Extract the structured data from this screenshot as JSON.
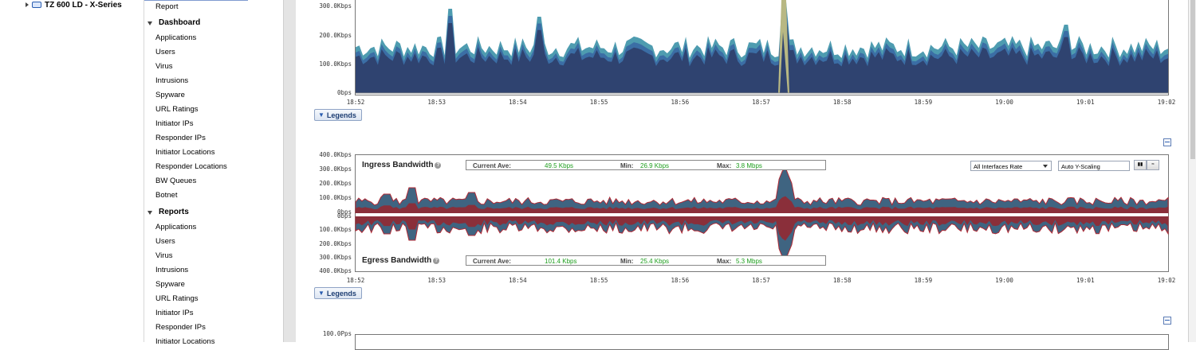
{
  "tree": {
    "device_label": "TZ 600 LD - X-Series"
  },
  "nav": {
    "report_label": "Report",
    "sections": [
      {
        "title": "Dashboard",
        "items": [
          "Applications",
          "Users",
          "Virus",
          "Intrusions",
          "Spyware",
          "URL Ratings",
          "Initiator IPs",
          "Responder IPs",
          "Initiator Locations",
          "Responder Locations",
          "BW Queues",
          "Botnet"
        ]
      },
      {
        "title": "Reports",
        "items": [
          "Applications",
          "Users",
          "Virus",
          "Intrusions",
          "Spyware",
          "URL Ratings",
          "Initiator IPs",
          "Responder IPs",
          "Initiator Locations"
        ]
      }
    ]
  },
  "top_chart": {
    "y_labels": [
      "300.0Kbps",
      "200.0Kbps",
      "100.0Kbps",
      "0bps"
    ],
    "x_labels": [
      "18:52",
      "18:53",
      "18:54",
      "18:55",
      "18:56",
      "18:57",
      "18:58",
      "18:59",
      "19:00",
      "19:01",
      "19:02"
    ],
    "legends_label": "Legends",
    "colors": {
      "main": "#2f4370",
      "layer2": "#3b6ea5",
      "layer3": "#4e9cb0",
      "spike": "#b8b883"
    }
  },
  "bw_chart": {
    "y_labels_top": [
      "400.0Kbps",
      "300.0Kbps",
      "200.0Kbps",
      "100.0Kbps",
      "0bps"
    ],
    "y_labels_bottom": [
      "0bps",
      "100.0Kbps",
      "200.0Kbps",
      "300.0Kbps",
      "400.0Kbps"
    ],
    "x_labels": [
      "18:52",
      "18:53",
      "18:54",
      "18:55",
      "18:56",
      "18:57",
      "18:58",
      "18:59",
      "19:00",
      "19:01",
      "19:02"
    ],
    "ingress": {
      "title": "Ingress Bandwidth",
      "current_label": "Current Ave:",
      "current_value": "49.5 Kbps",
      "min_label": "Min:",
      "min_value": "26.9 Kbps",
      "max_label": "Max:",
      "max_value": "3.8 Mbps"
    },
    "egress": {
      "title": "Egress Bandwidth",
      "current_label": "Current Ave:",
      "current_value": "101.4 Kbps",
      "min_label": "Min:",
      "min_value": "25.4 Kbps",
      "max_label": "Max:",
      "max_value": "5.3 Mbps"
    },
    "interface_select": "All Interfaces Rate",
    "scaling_select": "Auto Y-Scaling",
    "legends_label": "Legends",
    "colors": {
      "fill": "#3f6481",
      "outline": "#b02a35",
      "inner": "#8a2f3a"
    }
  },
  "third_chart": {
    "y_label_top": "100.0Pps"
  }
}
